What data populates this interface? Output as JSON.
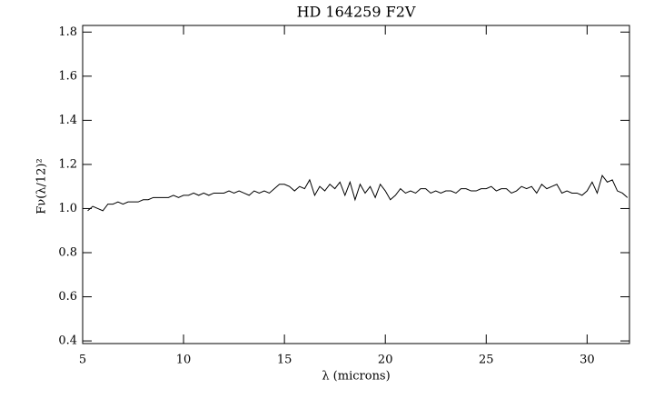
{
  "chart_data": {
    "type": "line",
    "title": "HD 164259 F2V",
    "x_label": "λ (microns)",
    "y_label": "Fν(λ/12)²",
    "xlim": [
      5,
      32.1
    ],
    "xticks": [
      5,
      10,
      15,
      20,
      25,
      30
    ],
    "ylim": [
      0.388,
      1.83
    ],
    "yticks": [
      0.4,
      0.6,
      0.8,
      {
        "value": 1,
        "label": "1.0"
      },
      1.2,
      1.4,
      1.6,
      1.8
    ],
    "color": "#000000",
    "x": [
      5.25,
      5.5,
      5.75,
      6.0,
      6.25,
      6.5,
      6.75,
      7.0,
      7.25,
      7.5,
      7.75,
      8.0,
      8.25,
      8.5,
      8.75,
      9.0,
      9.25,
      9.5,
      9.75,
      10.0,
      10.25,
      10.5,
      10.75,
      11.0,
      11.25,
      11.5,
      11.75,
      12.0,
      12.25,
      12.5,
      12.75,
      13.0,
      13.25,
      13.5,
      13.75,
      14.0,
      14.25,
      14.5,
      14.75,
      15.0,
      15.25,
      15.5,
      15.75,
      16.0,
      16.25,
      16.5,
      16.75,
      17.0,
      17.25,
      17.5,
      17.75,
      18.0,
      18.25,
      18.5,
      18.75,
      19.0,
      19.25,
      19.5,
      19.75,
      20.0,
      20.25,
      20.5,
      20.75,
      21.0,
      21.25,
      21.5,
      21.75,
      22.0,
      22.25,
      22.5,
      22.75,
      23.0,
      23.25,
      23.5,
      23.75,
      24.0,
      24.25,
      24.5,
      24.75,
      25.0,
      25.25,
      25.5,
      25.75,
      26.0,
      26.25,
      26.5,
      26.75,
      27.0,
      27.25,
      27.5,
      27.75,
      28.0,
      28.25,
      28.5,
      28.75,
      29.0,
      29.25,
      29.5,
      29.75,
      30.0,
      30.25,
      30.5,
      30.75,
      31.0,
      31.25,
      31.5,
      31.75,
      32.0
    ],
    "values": [
      0.99,
      1.01,
      1.0,
      0.99,
      1.02,
      1.02,
      1.03,
      1.02,
      1.03,
      1.03,
      1.03,
      1.04,
      1.04,
      1.05,
      1.05,
      1.05,
      1.05,
      1.06,
      1.05,
      1.06,
      1.06,
      1.07,
      1.06,
      1.07,
      1.06,
      1.07,
      1.07,
      1.07,
      1.08,
      1.07,
      1.08,
      1.07,
      1.06,
      1.08,
      1.07,
      1.08,
      1.07,
      1.09,
      1.11,
      1.11,
      1.1,
      1.08,
      1.1,
      1.09,
      1.13,
      1.06,
      1.1,
      1.08,
      1.11,
      1.09,
      1.12,
      1.06,
      1.12,
      1.04,
      1.11,
      1.07,
      1.1,
      1.05,
      1.11,
      1.08,
      1.04,
      1.06,
      1.09,
      1.07,
      1.08,
      1.07,
      1.09,
      1.09,
      1.07,
      1.08,
      1.07,
      1.08,
      1.08,
      1.07,
      1.09,
      1.09,
      1.08,
      1.08,
      1.09,
      1.09,
      1.1,
      1.08,
      1.09,
      1.09,
      1.07,
      1.08,
      1.1,
      1.09,
      1.1,
      1.07,
      1.11,
      1.09,
      1.1,
      1.11,
      1.07,
      1.08,
      1.07,
      1.07,
      1.06,
      1.08,
      1.12,
      1.07,
      1.15,
      1.12,
      1.13,
      1.08,
      1.07,
      1.05
    ]
  }
}
